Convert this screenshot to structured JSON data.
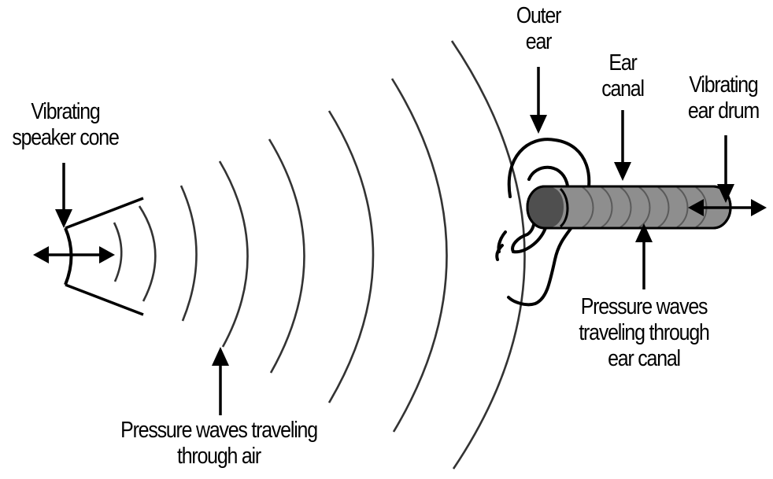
{
  "diagram": {
    "colors": {
      "ink": "#000000",
      "wave_stroke": "#333333",
      "canal_fill": "#8e8e8e",
      "canal_dark": "#4f4f4f",
      "canal_ring": "#5a5a5a",
      "background": "#ffffff"
    },
    "labels": {
      "speaker": {
        "line1": "Vibrating",
        "line2": "speaker cone"
      },
      "air_waves": {
        "line1": "Pressure waves traveling",
        "line2": "through air"
      },
      "outer_ear": {
        "line1": "Outer",
        "line2": "ear"
      },
      "ear_canal": {
        "line1": "Ear",
        "line2": "canal"
      },
      "ear_drum": {
        "line1": "Vibrating",
        "line2": "ear drum"
      },
      "canal_waves": {
        "line1": "Pressure waves",
        "line2": "traveling through",
        "line3": "ear canal"
      }
    }
  }
}
